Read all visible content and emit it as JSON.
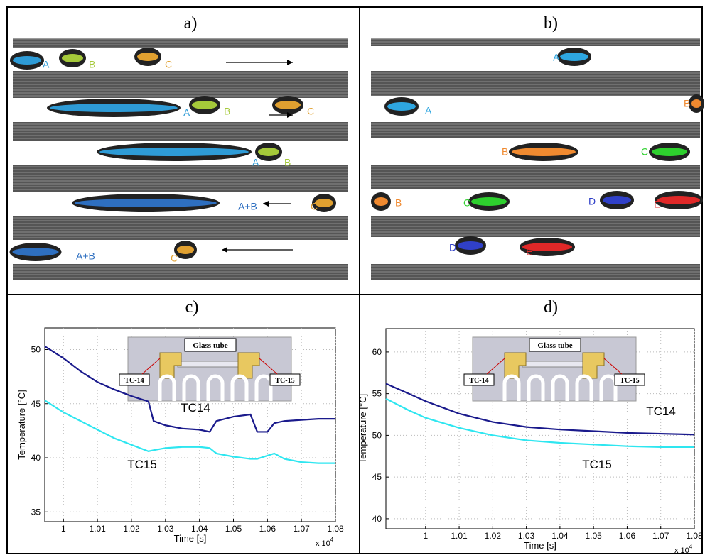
{
  "panels": [
    {
      "label": "a)",
      "markers": [
        {
          "text": "A",
          "color": "#2e9bd6"
        },
        {
          "text": "B",
          "color": "#a5c93a"
        },
        {
          "text": "C",
          "color": "#e0a030"
        },
        {
          "text": "A",
          "color": "#2e9bd6"
        },
        {
          "text": "B",
          "color": "#a5c93a"
        },
        {
          "text": "C",
          "color": "#e0a030"
        },
        {
          "text": "A",
          "color": "#2e9bd6"
        },
        {
          "text": "B",
          "color": "#a5c93a"
        },
        {
          "text": "A+B",
          "color": "#2e6fc0"
        },
        {
          "text": "C",
          "color": "#e0a030"
        },
        {
          "text": "A+B",
          "color": "#2e6fc0"
        },
        {
          "text": "C",
          "color": "#e0a030"
        }
      ]
    },
    {
      "label": "b)",
      "markers": [
        {
          "text": "A",
          "color": "#2ea6e0"
        },
        {
          "text": "A",
          "color": "#2ea6e0"
        },
        {
          "text": "B",
          "color": "#f08a30"
        },
        {
          "text": "B",
          "color": "#f08a30"
        },
        {
          "text": "C",
          "color": "#2ed02e"
        },
        {
          "text": "B",
          "color": "#f08a30"
        },
        {
          "text": "C",
          "color": "#2ed02e"
        },
        {
          "text": "D",
          "color": "#3040c8"
        },
        {
          "text": "E",
          "color": "#e02828"
        },
        {
          "text": "D",
          "color": "#3040c8"
        },
        {
          "text": "E",
          "color": "#e02828"
        }
      ]
    }
  ],
  "chart_data": [
    {
      "type": "line",
      "title": "c)",
      "xlabel": "Time [s]",
      "ylabel": "Temperature [°C]",
      "x_scale_label": "x 10",
      "x_scale_exponent": "4",
      "inset_labels": [
        "Glass tube",
        "TC-14",
        "TC-15"
      ],
      "xlim": [
        0.9945,
        1.08
      ],
      "ylim": [
        34.1,
        52
      ],
      "xticks": [
        1,
        1.01,
        1.02,
        1.03,
        1.04,
        1.05,
        1.06,
        1.07,
        1.08
      ],
      "yticks": [
        35,
        40,
        45,
        50
      ],
      "grid": true,
      "x": [
        0.9945,
        1.0,
        1.005,
        1.01,
        1.015,
        1.02,
        1.025,
        1.0265,
        1.03,
        1.035,
        1.04,
        1.043,
        1.045,
        1.05,
        1.055,
        1.057,
        1.06,
        1.062,
        1.065,
        1.07,
        1.075,
        1.08
      ],
      "series": [
        {
          "name": "TC14",
          "color": "#1a1a8c",
          "values": [
            50.3,
            49.2,
            48,
            47,
            46.3,
            45.7,
            45.2,
            43.4,
            43,
            42.7,
            42.6,
            42.4,
            43.4,
            43.8,
            44,
            42.4,
            42.4,
            43.2,
            43.4,
            43.5,
            43.6,
            43.6
          ]
        },
        {
          "name": "TC15",
          "color": "#2ee6f0",
          "values": [
            45.3,
            44.2,
            43.4,
            42.6,
            41.8,
            41.2,
            40.6,
            40.7,
            40.9,
            41,
            41,
            40.9,
            40.4,
            40.1,
            39.9,
            39.9,
            40.2,
            40.4,
            39.9,
            39.6,
            39.5,
            39.5
          ]
        }
      ]
    },
    {
      "type": "line",
      "title": "d)",
      "xlabel": "Time [s]",
      "ylabel": "Temperature [°C]",
      "x_scale_label": "x 10",
      "x_scale_exponent": "4",
      "inset_labels": [
        "Glass tube",
        "TC-14",
        "TC-15"
      ],
      "xlim": [
        0.9882,
        1.08
      ],
      "ylim": [
        38.8,
        62.8
      ],
      "xticks": [
        1,
        1.01,
        1.02,
        1.03,
        1.04,
        1.05,
        1.06,
        1.07,
        1.08
      ],
      "yticks": [
        40,
        45,
        50,
        55,
        60
      ],
      "grid": true,
      "x": [
        0.9882,
        0.995,
        1.0,
        1.01,
        1.02,
        1.03,
        1.04,
        1.05,
        1.06,
        1.07,
        1.08
      ],
      "series": [
        {
          "name": "TC14",
          "color": "#1a1a8c",
          "values": [
            56.2,
            55,
            54.1,
            52.6,
            51.6,
            51,
            50.7,
            50.5,
            50.3,
            50.2,
            50.1
          ]
        },
        {
          "name": "TC15",
          "color": "#2ee6f0",
          "values": [
            54.4,
            53,
            52.1,
            50.9,
            50,
            49.4,
            49.1,
            48.9,
            48.7,
            48.6,
            48.6
          ]
        }
      ]
    }
  ]
}
